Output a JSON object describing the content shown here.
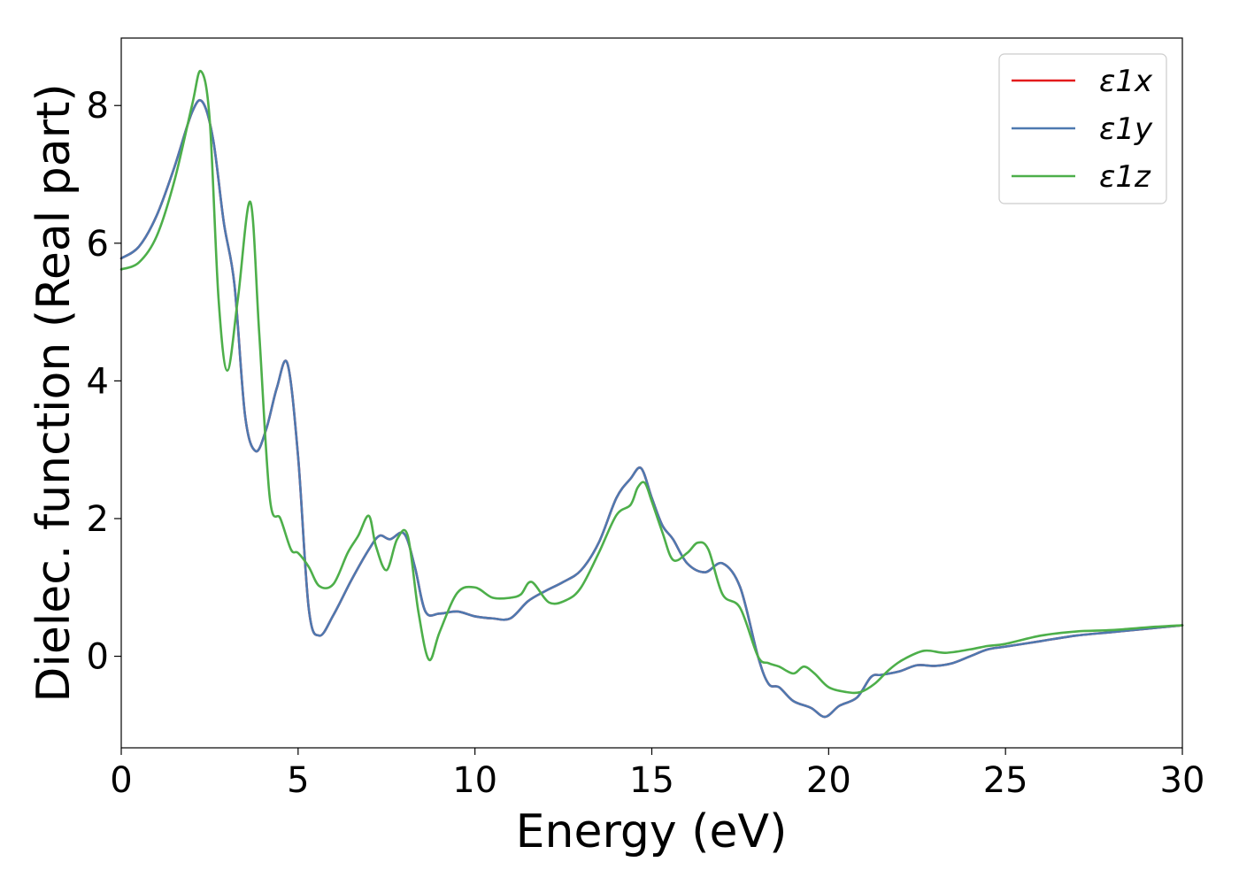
{
  "chart_data": {
    "type": "line",
    "title": "",
    "xlabel": "Energy (eV)",
    "ylabel": "Dielec. function (Real part)",
    "xlim": [
      0,
      30
    ],
    "ylim": [
      -1.33,
      8.98
    ],
    "xticks": [
      0,
      5,
      10,
      15,
      20,
      25,
      30
    ],
    "yticks": [
      0,
      2,
      4,
      6,
      8
    ],
    "grid": false,
    "legend_position": "top-right",
    "series": [
      {
        "name": "ε1x",
        "color": "#e41a1c",
        "x": [
          0,
          0.5,
          1.0,
          1.5,
          2.0,
          2.3,
          2.6,
          2.9,
          3.2,
          3.5,
          3.8,
          4.1,
          4.4,
          4.7,
          5.0,
          5.3,
          5.6,
          6.0,
          6.5,
          7.0,
          7.3,
          7.6,
          8.0,
          8.3,
          8.6,
          9.0,
          9.5,
          10.0,
          10.5,
          11.0,
          11.5,
          12.0,
          12.5,
          13.0,
          13.5,
          14.0,
          14.4,
          14.7,
          15.0,
          15.3,
          15.6,
          16.0,
          16.5,
          17.0,
          17.5,
          18.0,
          18.3,
          18.6,
          19.0,
          19.5,
          19.9,
          20.3,
          20.8,
          21.2,
          21.5,
          22.0,
          22.5,
          23.0,
          23.5,
          24.0,
          24.5,
          25.0,
          26.0,
          27.0,
          28.0,
          29.0,
          30.0
        ],
        "values": [
          5.78,
          5.95,
          6.4,
          7.1,
          7.9,
          8.05,
          7.5,
          6.3,
          5.4,
          3.5,
          2.98,
          3.3,
          3.9,
          4.25,
          2.9,
          0.7,
          0.3,
          0.6,
          1.1,
          1.55,
          1.75,
          1.7,
          1.78,
          1.3,
          0.65,
          0.62,
          0.65,
          0.58,
          0.55,
          0.55,
          0.8,
          0.95,
          1.08,
          1.25,
          1.65,
          2.3,
          2.58,
          2.73,
          2.3,
          1.9,
          1.7,
          1.35,
          1.22,
          1.35,
          1.0,
          0.0,
          -0.4,
          -0.45,
          -0.65,
          -0.75,
          -0.88,
          -0.72,
          -0.6,
          -0.3,
          -0.27,
          -0.22,
          -0.13,
          -0.14,
          -0.1,
          0.0,
          0.1,
          0.14,
          0.22,
          0.3,
          0.35,
          0.4,
          0.45
        ]
      },
      {
        "name": "ε1y",
        "color": "#4e79b0",
        "x": [
          0,
          0.5,
          1.0,
          1.5,
          2.0,
          2.3,
          2.6,
          2.9,
          3.2,
          3.5,
          3.8,
          4.1,
          4.4,
          4.7,
          5.0,
          5.3,
          5.6,
          6.0,
          6.5,
          7.0,
          7.3,
          7.6,
          8.0,
          8.3,
          8.6,
          9.0,
          9.5,
          10.0,
          10.5,
          11.0,
          11.5,
          12.0,
          12.5,
          13.0,
          13.5,
          14.0,
          14.4,
          14.7,
          15.0,
          15.3,
          15.6,
          16.0,
          16.5,
          17.0,
          17.5,
          18.0,
          18.3,
          18.6,
          19.0,
          19.5,
          19.9,
          20.3,
          20.8,
          21.2,
          21.5,
          22.0,
          22.5,
          23.0,
          23.5,
          24.0,
          24.5,
          25.0,
          26.0,
          27.0,
          28.0,
          29.0,
          30.0
        ],
        "values": [
          5.78,
          5.95,
          6.4,
          7.1,
          7.9,
          8.05,
          7.5,
          6.3,
          5.4,
          3.5,
          2.98,
          3.3,
          3.9,
          4.25,
          2.9,
          0.7,
          0.3,
          0.6,
          1.1,
          1.55,
          1.75,
          1.7,
          1.78,
          1.3,
          0.65,
          0.62,
          0.65,
          0.58,
          0.55,
          0.55,
          0.8,
          0.95,
          1.08,
          1.25,
          1.65,
          2.3,
          2.58,
          2.73,
          2.3,
          1.9,
          1.7,
          1.35,
          1.22,
          1.35,
          1.0,
          0.0,
          -0.4,
          -0.45,
          -0.65,
          -0.75,
          -0.88,
          -0.72,
          -0.6,
          -0.3,
          -0.27,
          -0.22,
          -0.13,
          -0.14,
          -0.1,
          0.0,
          0.1,
          0.14,
          0.22,
          0.3,
          0.35,
          0.4,
          0.45
        ]
      },
      {
        "name": "ε1z",
        "color": "#4daf4a",
        "x": [
          0,
          0.5,
          1.0,
          1.5,
          2.0,
          2.25,
          2.5,
          2.75,
          3.0,
          3.3,
          3.65,
          3.9,
          4.2,
          4.5,
          4.8,
          5.0,
          5.3,
          5.6,
          6.0,
          6.4,
          6.7,
          7.0,
          7.2,
          7.5,
          7.8,
          8.1,
          8.4,
          8.7,
          9.0,
          9.5,
          10.0,
          10.5,
          11.0,
          11.3,
          11.6,
          12.1,
          12.6,
          13.0,
          13.5,
          14.0,
          14.4,
          14.6,
          14.8,
          15.0,
          15.3,
          15.6,
          16.0,
          16.3,
          16.6,
          17.0,
          17.5,
          18.0,
          18.3,
          18.6,
          19.0,
          19.3,
          19.6,
          20.0,
          20.5,
          20.9,
          21.3,
          21.7,
          22.1,
          22.7,
          23.3,
          24.0,
          24.5,
          25.0,
          26.0,
          27.0,
          28.0,
          29.0,
          30.0
        ],
        "values": [
          5.62,
          5.72,
          6.1,
          6.9,
          8.0,
          8.5,
          7.8,
          5.2,
          4.15,
          5.2,
          6.6,
          4.7,
          2.3,
          2.0,
          1.55,
          1.5,
          1.3,
          1.02,
          1.05,
          1.5,
          1.75,
          2.04,
          1.6,
          1.25,
          1.7,
          1.75,
          0.65,
          -0.05,
          0.35,
          0.92,
          1.0,
          0.85,
          0.85,
          0.9,
          1.08,
          0.78,
          0.82,
          1.0,
          1.5,
          2.05,
          2.2,
          2.45,
          2.52,
          2.25,
          1.8,
          1.4,
          1.5,
          1.65,
          1.55,
          0.9,
          0.7,
          0.0,
          -0.1,
          -0.15,
          -0.25,
          -0.15,
          -0.25,
          -0.45,
          -0.52,
          -0.52,
          -0.4,
          -0.2,
          -0.05,
          0.08,
          0.05,
          0.1,
          0.15,
          0.18,
          0.3,
          0.36,
          0.38,
          0.42,
          0.45
        ]
      }
    ]
  }
}
